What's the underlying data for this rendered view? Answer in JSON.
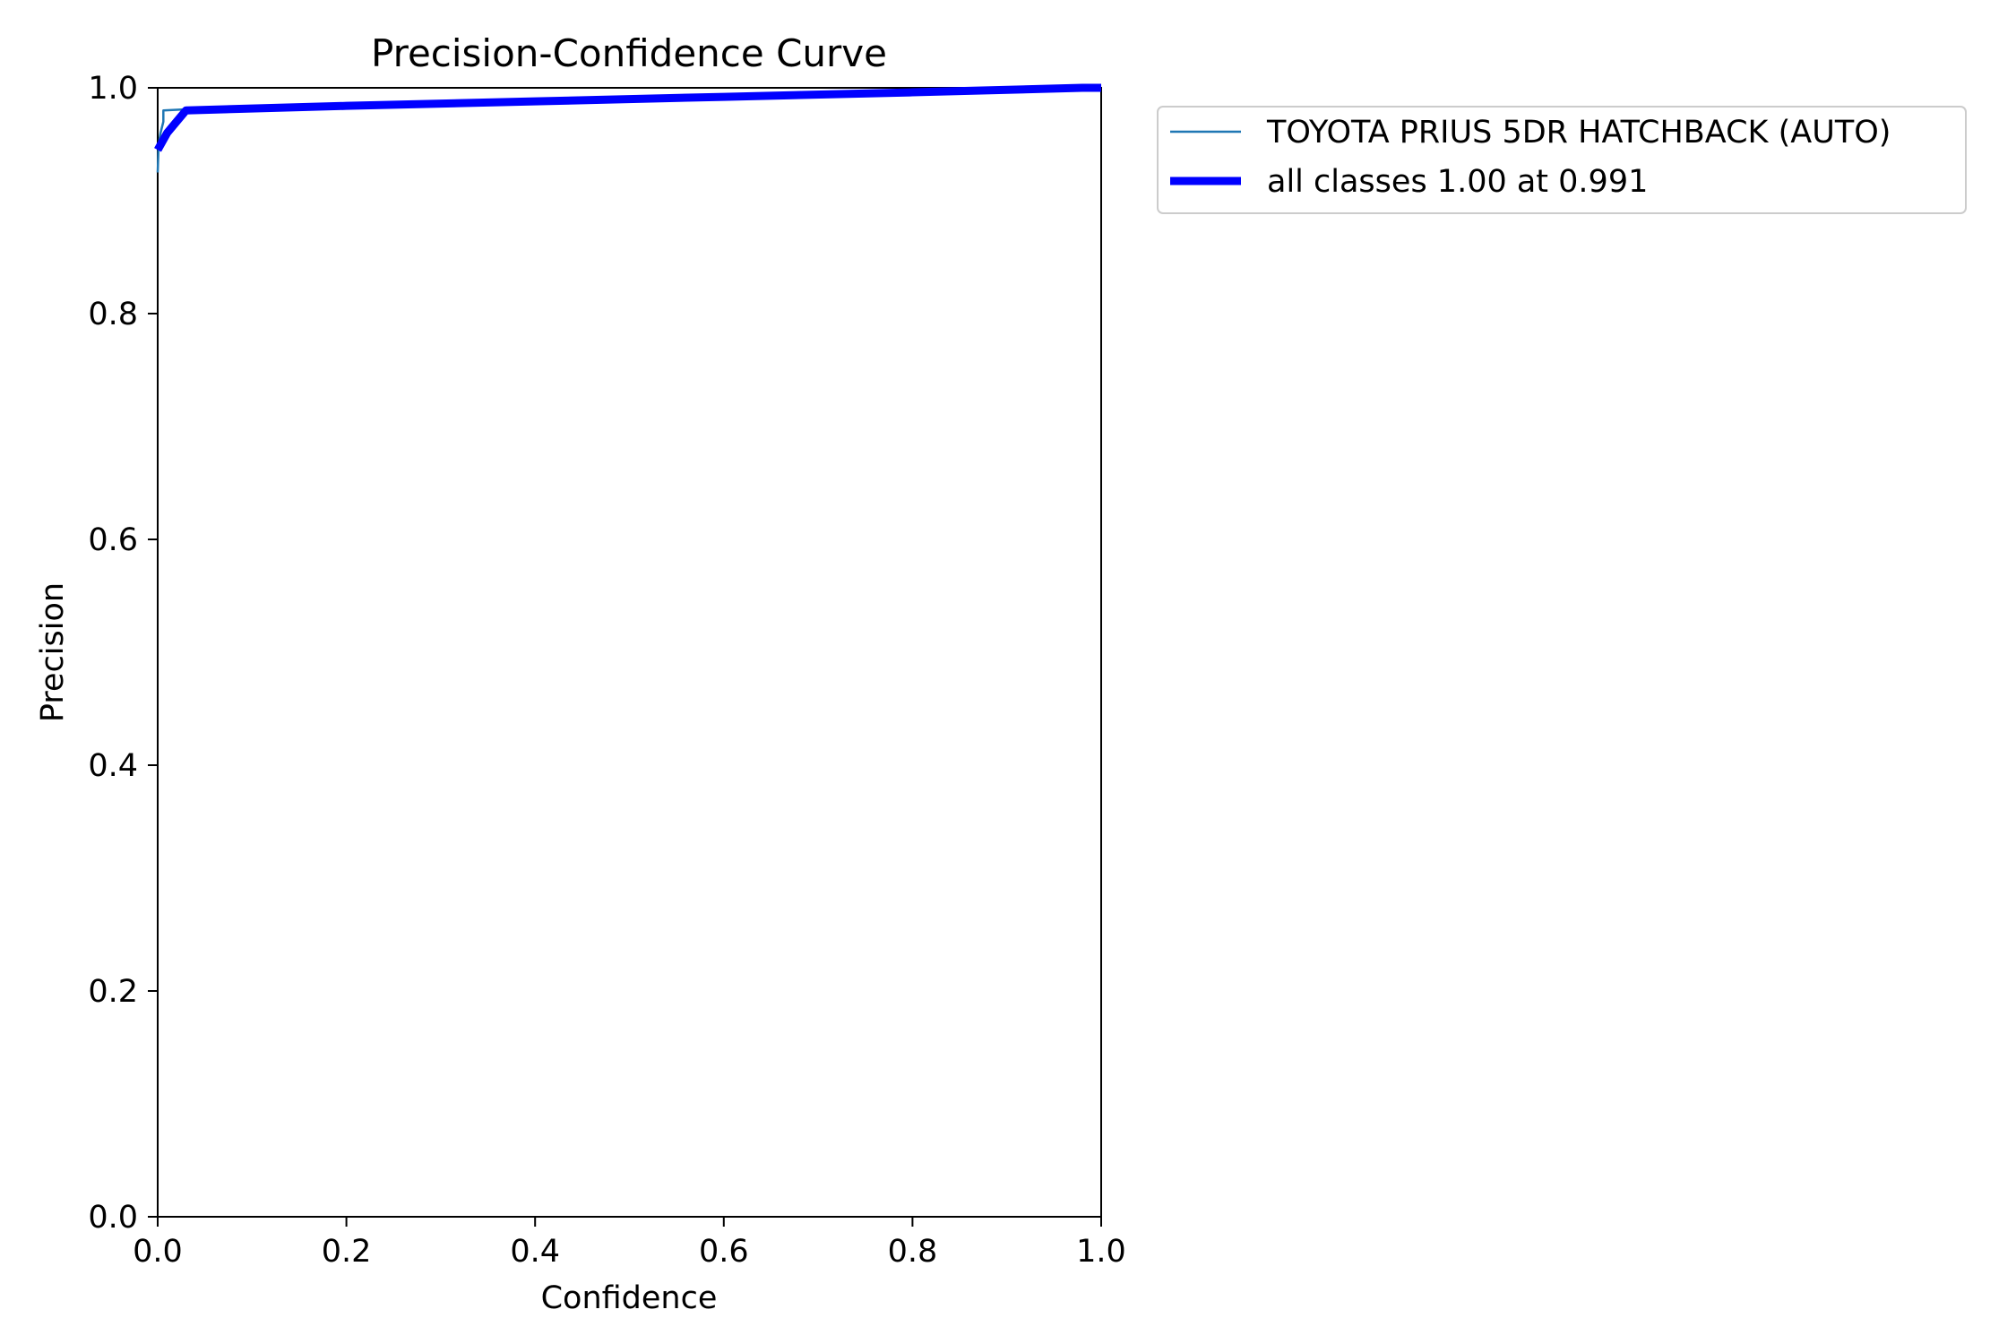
{
  "chart_data": {
    "type": "line",
    "title": "Precision-Confidence Curve",
    "xlabel": "Confidence",
    "ylabel": "Precision",
    "xlim": [
      0,
      1
    ],
    "ylim": [
      0,
      1
    ],
    "xticks": [
      0.0,
      0.2,
      0.4,
      0.6,
      0.8,
      1.0
    ],
    "yticks": [
      0.0,
      0.2,
      0.4,
      0.6,
      0.8,
      1.0
    ],
    "xtick_labels": [
      "0.0",
      "0.2",
      "0.4",
      "0.6",
      "0.8",
      "1.0"
    ],
    "ytick_labels": [
      "0.0",
      "0.2",
      "0.4",
      "0.6",
      "0.8",
      "1.0"
    ],
    "grid": false,
    "legend_position": "outside-top-right",
    "series": [
      {
        "name": "TOYOTA PRIUS 5DR HATCHBACK (AUTO)",
        "color": "#1f77b4",
        "style": "thin",
        "x": [
          0.0,
          0.001,
          0.003,
          0.006,
          0.006,
          0.03,
          0.2,
          0.4,
          0.6,
          0.8,
          0.98,
          1.0
        ],
        "y": [
          0.925,
          0.95,
          0.96,
          0.97,
          0.98,
          0.981,
          0.985,
          0.989,
          0.993,
          0.997,
          1.0,
          1.0
        ]
      },
      {
        "name": "all classes 1.00 at 0.991",
        "color": "#0000ff",
        "style": "thick",
        "x": [
          0.0,
          0.01,
          0.02,
          0.03,
          0.2,
          0.4,
          0.6,
          0.8,
          0.98,
          1.0
        ],
        "y": [
          0.945,
          0.96,
          0.97,
          0.98,
          0.984,
          0.988,
          0.992,
          0.996,
          1.0,
          1.0
        ]
      }
    ]
  }
}
